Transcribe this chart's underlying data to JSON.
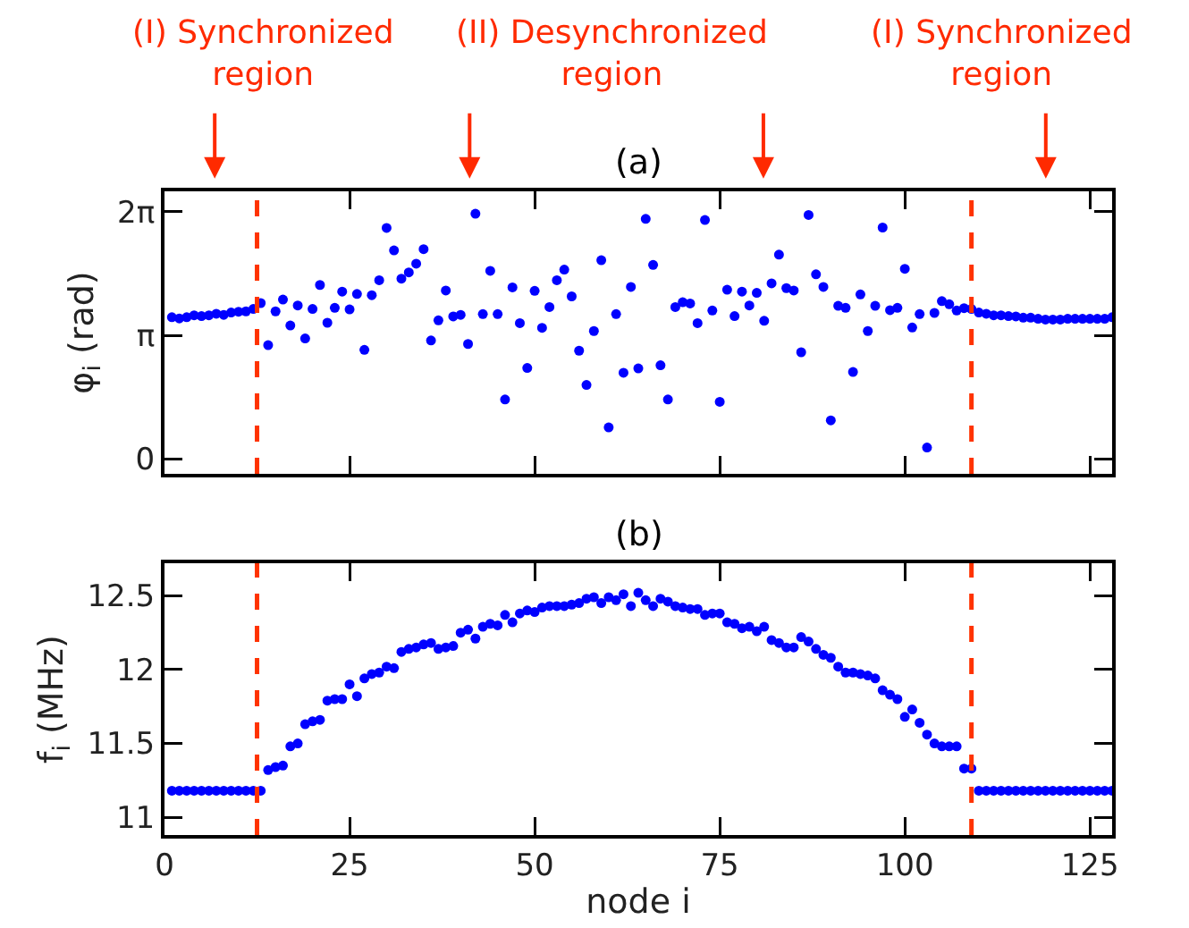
{
  "chart_data": [
    {
      "type": "scatter",
      "title": "(a)",
      "ylabel": "φ$_{i}$ (rad)",
      "marker": "circle",
      "tick_labels": "y",
      "annotations": [
        "(I) Synchronized region",
        "(II) Desynchronized region",
        "(I) Synchronized region"
      ],
      "x": [
        1,
        2,
        3,
        4,
        5,
        6,
        7,
        8,
        9,
        10,
        11,
        12,
        13,
        14,
        15,
        16,
        17,
        18,
        19,
        20,
        21,
        22,
        23,
        24,
        25,
        26,
        27,
        28,
        29,
        30,
        31,
        32,
        33,
        34,
        35,
        36,
        37,
        38,
        39,
        40,
        41,
        42,
        43,
        44,
        45,
        46,
        47,
        48,
        49,
        50,
        51,
        52,
        53,
        54,
        55,
        56,
        57,
        58,
        59,
        60,
        61,
        62,
        63,
        64,
        65,
        66,
        67,
        68,
        69,
        70,
        71,
        72,
        73,
        74,
        75,
        76,
        77,
        78,
        79,
        80,
        81,
        82,
        83,
        84,
        85,
        86,
        87,
        88,
        89,
        90,
        91,
        92,
        93,
        94,
        95,
        96,
        97,
        98,
        99,
        100,
        101,
        102,
        103,
        104,
        105,
        106,
        107,
        108,
        109,
        110,
        111,
        112,
        113,
        114,
        115,
        116,
        117,
        118,
        119,
        120,
        121,
        122,
        123,
        124,
        125,
        126,
        127,
        128
      ],
      "series": [
        {
          "color": "#0000ff",
          "values": [
            3.6,
            3.57,
            3.6,
            3.65,
            3.63,
            3.65,
            3.69,
            3.66,
            3.72,
            3.74,
            3.75,
            3.81,
            3.96,
            2.89,
            3.75,
            4.05,
            3.39,
            3.9,
            3.06,
            3.81,
            4.42,
            3.46,
            3.84,
            4.25,
            3.8,
            4.19,
            2.77,
            4.16,
            4.54,
            5.87,
            5.3,
            4.58,
            4.74,
            4.96,
            5.33,
            3.01,
            3.52,
            4.28,
            3.62,
            3.66,
            2.92,
            6.23,
            3.68,
            4.78,
            3.68,
            1.51,
            4.36,
            3.45,
            2.31,
            4.27,
            3.33,
            3.86,
            4.54,
            4.81,
            4.13,
            2.75,
            1.88,
            3.25,
            5.05,
            0.8,
            3.68,
            2.19,
            4.37,
            2.3,
            6.1,
            4.93,
            2.38,
            1.51,
            3.86,
            3.98,
            3.95,
            3.45,
            6.07,
            3.77,
            1.45,
            4.3,
            3.63,
            4.25,
            3.9,
            4.22,
            3.51,
            4.46,
            5.19,
            4.34,
            4.28,
            2.71,
            6.2,
            4.69,
            4.37,
            0.98,
            3.89,
            3.84,
            2.21,
            4.18,
            3.25,
            3.89,
            5.88,
            3.78,
            3.84,
            4.83,
            3.34,
            3.68,
            0.29,
            3.71,
            4.01,
            3.93,
            3.77,
            3.83,
            3.81,
            3.72,
            3.69,
            3.65,
            3.65,
            3.63,
            3.62,
            3.59,
            3.59,
            3.56,
            3.54,
            3.54,
            3.54,
            3.56,
            3.56,
            3.56,
            3.56,
            3.56,
            3.56,
            3.6
          ]
        }
      ],
      "xlim": [
        0,
        128
      ],
      "xticks": [
        0,
        25,
        50,
        75,
        100,
        125
      ],
      "ylim": [
        -0.38,
        6.8
      ],
      "yticks": [
        {
          "value": 0,
          "label": "0"
        },
        {
          "value": 3.1416,
          "label": "π"
        },
        {
          "value": 6.2832,
          "label": "2π"
        }
      ],
      "ref_lines": [
        {
          "axis": "x",
          "value": 12.5,
          "color": "#ff3300",
          "line_style": "dashed"
        },
        {
          "axis": "x",
          "value": 109,
          "color": "#ff3300",
          "line_style": "dashed"
        }
      ]
    },
    {
      "type": "scatter",
      "title": "(b)",
      "xlabel": "node i",
      "ylabel": "f$_{i}$ (MHz)",
      "marker": "circle",
      "x": [
        1,
        2,
        3,
        4,
        5,
        6,
        7,
        8,
        9,
        10,
        11,
        12,
        13,
        14,
        15,
        16,
        17,
        18,
        19,
        20,
        21,
        22,
        23,
        24,
        25,
        26,
        27,
        28,
        29,
        30,
        31,
        32,
        33,
        34,
        35,
        36,
        37,
        38,
        39,
        40,
        41,
        42,
        43,
        44,
        45,
        46,
        47,
        48,
        49,
        50,
        51,
        52,
        53,
        54,
        55,
        56,
        57,
        58,
        59,
        60,
        61,
        62,
        63,
        64,
        65,
        66,
        67,
        68,
        69,
        70,
        71,
        72,
        73,
        74,
        75,
        76,
        77,
        78,
        79,
        80,
        81,
        82,
        83,
        84,
        85,
        86,
        87,
        88,
        89,
        90,
        91,
        92,
        93,
        94,
        95,
        96,
        97,
        98,
        99,
        100,
        101,
        102,
        103,
        104,
        105,
        106,
        107,
        108,
        109,
        110,
        111,
        112,
        113,
        114,
        115,
        116,
        117,
        118,
        119,
        120,
        121,
        122,
        123,
        124,
        125,
        126,
        127,
        128
      ],
      "series": [
        {
          "color": "#0000ff",
          "values": [
            11.18,
            11.18,
            11.18,
            11.18,
            11.18,
            11.18,
            11.18,
            11.18,
            11.18,
            11.18,
            11.18,
            11.18,
            11.18,
            11.32,
            11.34,
            11.35,
            11.48,
            11.5,
            11.63,
            11.65,
            11.66,
            11.79,
            11.8,
            11.8,
            11.9,
            11.82,
            11.94,
            11.97,
            11.98,
            12.02,
            12.01,
            12.12,
            12.14,
            12.15,
            12.17,
            12.18,
            12.14,
            12.15,
            12.16,
            12.25,
            12.27,
            12.21,
            12.29,
            12.31,
            12.3,
            12.37,
            12.32,
            12.38,
            12.4,
            12.39,
            12.42,
            12.43,
            12.43,
            12.43,
            12.44,
            12.45,
            12.48,
            12.49,
            12.45,
            12.49,
            12.47,
            12.51,
            12.43,
            12.52,
            12.47,
            12.43,
            12.48,
            12.46,
            12.43,
            12.42,
            12.41,
            12.41,
            12.37,
            12.38,
            12.38,
            12.32,
            12.31,
            12.28,
            12.29,
            12.26,
            12.29,
            12.2,
            12.18,
            12.15,
            12.15,
            12.22,
            12.19,
            12.14,
            12.1,
            12.08,
            12.02,
            11.98,
            11.98,
            11.97,
            11.96,
            11.94,
            11.86,
            11.83,
            11.8,
            11.68,
            11.73,
            11.64,
            11.56,
            11.5,
            11.48,
            11.48,
            11.48,
            11.33,
            11.33,
            11.18,
            11.18,
            11.18,
            11.18,
            11.18,
            11.18,
            11.18,
            11.18,
            11.18,
            11.18,
            11.18,
            11.18,
            11.18,
            11.18,
            11.18,
            11.18,
            11.18,
            11.18,
            11.18
          ]
        }
      ],
      "xlim": [
        0,
        128
      ],
      "xticks": [
        0,
        25,
        50,
        75,
        100,
        125
      ],
      "ylim": [
        10.88,
        12.72
      ],
      "yticks": [
        11,
        11.5,
        12,
        12.5
      ],
      "ref_lines": [
        {
          "axis": "x",
          "value": 12.5,
          "color": "#ff3300",
          "line_style": "dashed"
        },
        {
          "axis": "x",
          "value": 109,
          "color": "#ff3300",
          "line_style": "dashed"
        }
      ]
    }
  ]
}
